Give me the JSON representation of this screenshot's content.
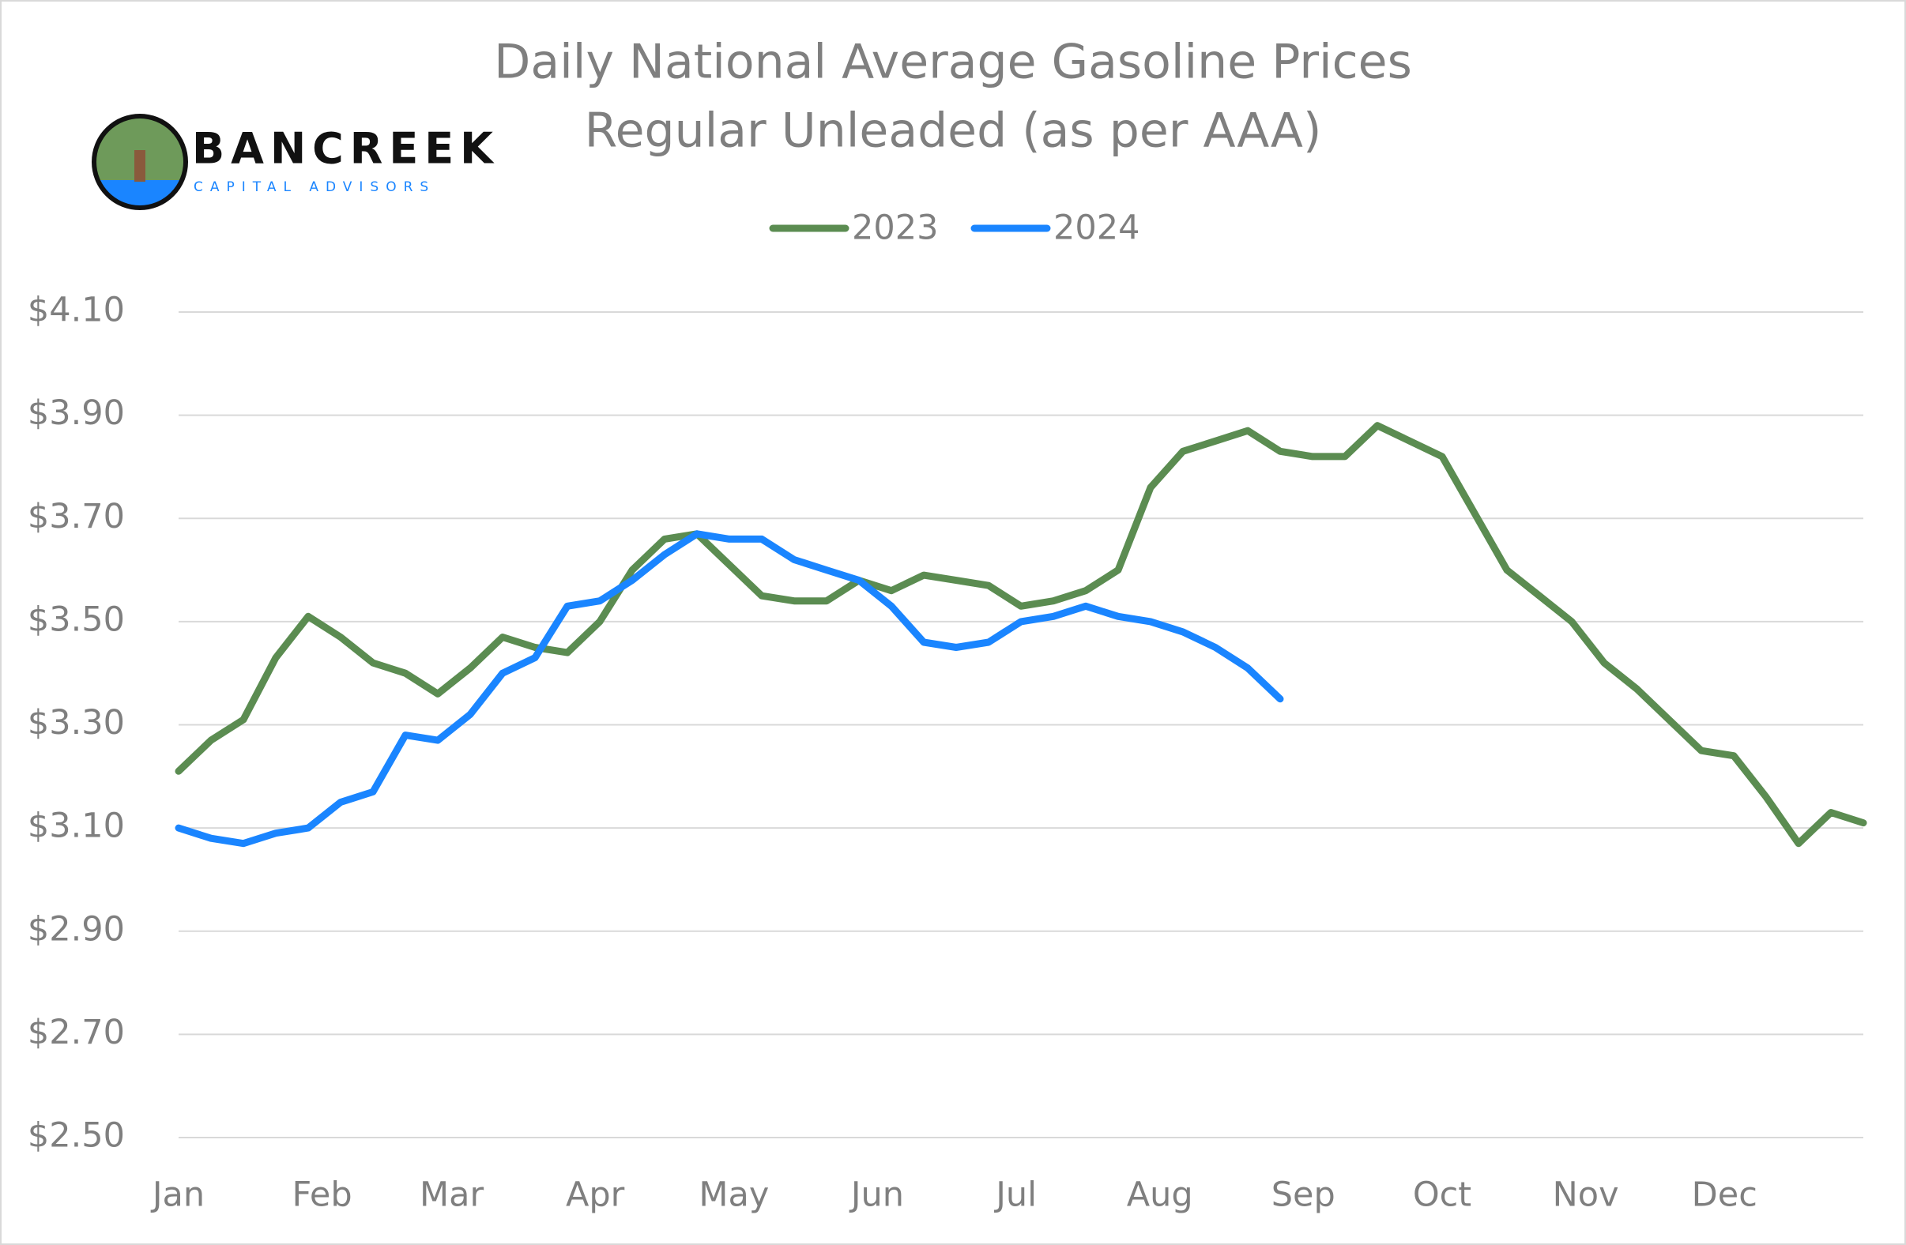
{
  "logo": {
    "name": "BANCREEK",
    "tagline": "CAPITAL ADVISORS"
  },
  "chart_data": {
    "type": "line",
    "title": "Daily National Average Gasoline Prices",
    "subtitle": "Regular Unleaded (as per AAA)",
    "x": [
      1,
      8,
      15,
      22,
      29,
      36,
      43,
      50,
      57,
      64,
      71,
      78,
      85,
      92,
      99,
      106,
      113,
      120,
      127,
      134,
      141,
      148,
      155,
      162,
      169,
      176,
      183,
      190,
      197,
      204,
      211,
      218,
      225,
      232,
      239,
      246,
      253,
      260,
      267,
      274,
      281,
      288,
      295,
      302,
      309,
      316,
      323,
      330,
      337,
      344,
      351,
      358,
      365
    ],
    "xlim": [
      1,
      365
    ],
    "xticks": [
      {
        "value": 1,
        "label": "Jan"
      },
      {
        "value": 32,
        "label": "Feb"
      },
      {
        "value": 60,
        "label": "Mar"
      },
      {
        "value": 91,
        "label": "Apr"
      },
      {
        "value": 121,
        "label": "May"
      },
      {
        "value": 152,
        "label": "Jun"
      },
      {
        "value": 182,
        "label": "Jul"
      },
      {
        "value": 213,
        "label": "Aug"
      },
      {
        "value": 244,
        "label": "Sep"
      },
      {
        "value": 274,
        "label": "Oct"
      },
      {
        "value": 305,
        "label": "Nov"
      },
      {
        "value": 335,
        "label": "Dec"
      }
    ],
    "ylim": [
      2.5,
      4.1
    ],
    "yticks": [
      {
        "value": 2.5,
        "label": "$2.50"
      },
      {
        "value": 2.7,
        "label": "$2.70"
      },
      {
        "value": 2.9,
        "label": "$2.90"
      },
      {
        "value": 3.1,
        "label": "$3.10"
      },
      {
        "value": 3.3,
        "label": "$3.30"
      },
      {
        "value": 3.5,
        "label": "$3.50"
      },
      {
        "value": 3.7,
        "label": "$3.70"
      },
      {
        "value": 3.9,
        "label": "$3.90"
      },
      {
        "value": 4.1,
        "label": "$4.10"
      }
    ],
    "grid": true,
    "legend": "top",
    "series": [
      {
        "name": "2023",
        "color": "#5b8c51",
        "values": [
          3.21,
          3.27,
          3.31,
          3.43,
          3.51,
          3.47,
          3.42,
          3.4,
          3.36,
          3.41,
          3.47,
          3.45,
          3.44,
          3.5,
          3.6,
          3.66,
          3.67,
          3.61,
          3.55,
          3.54,
          3.54,
          3.58,
          3.56,
          3.59,
          3.58,
          3.57,
          3.53,
          3.54,
          3.56,
          3.6,
          3.76,
          3.83,
          3.85,
          3.87,
          3.83,
          3.82,
          3.82,
          3.88,
          3.85,
          3.82,
          3.71,
          3.6,
          3.55,
          3.5,
          3.42,
          3.37,
          3.31,
          3.25,
          3.24,
          3.16,
          3.07,
          3.13,
          3.11
        ]
      },
      {
        "name": "2024",
        "color": "#1a85ff",
        "values": [
          3.1,
          3.08,
          3.07,
          3.09,
          3.1,
          3.15,
          3.17,
          3.28,
          3.27,
          3.32,
          3.4,
          3.43,
          3.53,
          3.54,
          3.58,
          3.63,
          3.67,
          3.66,
          3.66,
          3.62,
          3.6,
          3.58,
          3.53,
          3.46,
          3.45,
          3.46,
          3.5,
          3.51,
          3.53,
          3.51,
          3.5,
          3.48,
          3.45,
          3.41,
          3.35,
          null,
          null,
          null,
          null,
          null,
          null,
          null,
          null,
          null,
          null,
          null,
          null,
          null,
          null,
          null,
          null,
          null,
          null
        ]
      }
    ]
  }
}
